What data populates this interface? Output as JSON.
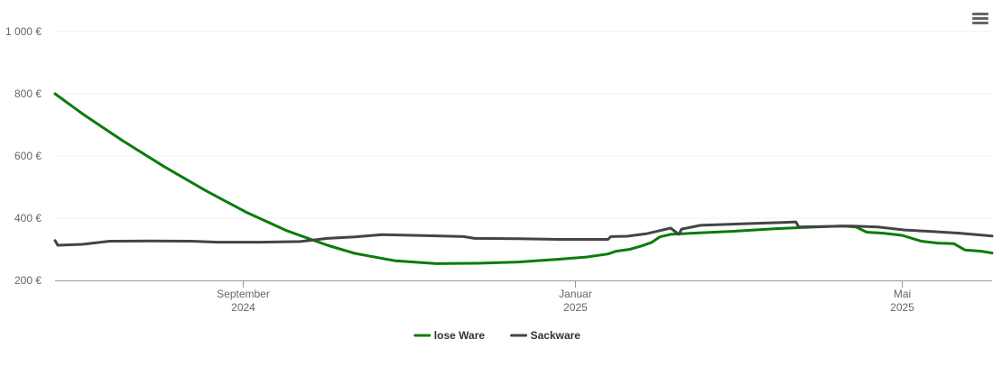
{
  "menu": {
    "icon": "hamburger-menu-icon"
  },
  "chart_data": {
    "type": "line",
    "title": "",
    "xlabel": "",
    "ylabel": "",
    "ylim": [
      200,
      1000
    ],
    "y_ticks": [
      {
        "value": 200,
        "label": "200 €"
      },
      {
        "value": 400,
        "label": "400 €"
      },
      {
        "value": 600,
        "label": "600 €"
      },
      {
        "value": 800,
        "label": "800 €"
      },
      {
        "value": 1000,
        "label": "1 000 €"
      }
    ],
    "x_range": [
      "2024-06-24",
      "2025-06-03"
    ],
    "x_ticks": [
      {
        "date": "2024-09-01",
        "month": "September",
        "year": "2024"
      },
      {
        "date": "2025-01-01",
        "month": "Januar",
        "year": "2025"
      },
      {
        "date": "2025-05-01",
        "month": "Mai",
        "year": "2025"
      }
    ],
    "grid": true,
    "legend_position": "bottom-center",
    "series": [
      {
        "name": "lose Ware",
        "color": "#0a7c0a",
        "points": [
          [
            "2024-06-24",
            800
          ],
          [
            "2024-07-04",
            736
          ],
          [
            "2024-07-19",
            648
          ],
          [
            "2024-08-03",
            566
          ],
          [
            "2024-08-18",
            490
          ],
          [
            "2024-09-02",
            420
          ],
          [
            "2024-09-17",
            360
          ],
          [
            "2024-10-02",
            313
          ],
          [
            "2024-10-12",
            287
          ],
          [
            "2024-10-27",
            263
          ],
          [
            "2024-11-11",
            254
          ],
          [
            "2024-11-26",
            255
          ],
          [
            "2024-12-11",
            259
          ],
          [
            "2024-12-26",
            268
          ],
          [
            "2025-01-05",
            275
          ],
          [
            "2025-01-13",
            285
          ],
          [
            "2025-01-16",
            294
          ],
          [
            "2025-01-21",
            300
          ],
          [
            "2025-01-25",
            310
          ],
          [
            "2025-01-29",
            322
          ],
          [
            "2025-02-01",
            340
          ],
          [
            "2025-02-05",
            348
          ],
          [
            "2025-02-13",
            352
          ],
          [
            "2025-02-28",
            358
          ],
          [
            "2025-03-15",
            366
          ],
          [
            "2025-03-30",
            372
          ],
          [
            "2025-04-09",
            375
          ],
          [
            "2025-04-14",
            372
          ],
          [
            "2025-04-18",
            355
          ],
          [
            "2025-04-24",
            352
          ],
          [
            "2025-05-01",
            345
          ],
          [
            "2025-05-08",
            326
          ],
          [
            "2025-05-14",
            320
          ],
          [
            "2025-05-20",
            318
          ],
          [
            "2025-05-24",
            298
          ],
          [
            "2025-05-30",
            294
          ],
          [
            "2025-06-03",
            288
          ]
        ]
      },
      {
        "name": "Sackware",
        "color": "#444444",
        "points": [
          [
            "2024-06-24",
            328
          ],
          [
            "2024-06-25",
            313
          ],
          [
            "2024-07-04",
            316
          ],
          [
            "2024-07-14",
            326
          ],
          [
            "2024-07-29",
            327
          ],
          [
            "2024-08-13",
            326
          ],
          [
            "2024-08-23",
            323
          ],
          [
            "2024-09-07",
            323
          ],
          [
            "2024-09-22",
            325
          ],
          [
            "2024-10-02",
            335
          ],
          [
            "2024-10-12",
            340
          ],
          [
            "2024-10-22",
            347
          ],
          [
            "2024-11-06",
            344
          ],
          [
            "2024-11-21",
            341
          ],
          [
            "2024-11-25",
            335
          ],
          [
            "2024-12-11",
            334
          ],
          [
            "2024-12-26",
            332
          ],
          [
            "2025-01-13",
            332
          ],
          [
            "2025-01-14",
            341
          ],
          [
            "2025-01-20",
            342
          ],
          [
            "2025-01-27",
            350
          ],
          [
            "2025-02-01",
            360
          ],
          [
            "2025-02-05",
            368
          ],
          [
            "2025-02-08",
            348
          ],
          [
            "2025-02-09",
            365
          ],
          [
            "2025-02-16",
            377
          ],
          [
            "2025-03-03",
            382
          ],
          [
            "2025-03-18",
            386
          ],
          [
            "2025-03-23",
            388
          ],
          [
            "2025-03-24",
            372
          ],
          [
            "2025-04-02",
            373
          ],
          [
            "2025-04-12",
            375
          ],
          [
            "2025-04-22",
            372
          ],
          [
            "2025-05-02",
            362
          ],
          [
            "2025-05-12",
            357
          ],
          [
            "2025-05-22",
            352
          ],
          [
            "2025-06-03",
            343
          ]
        ]
      }
    ]
  }
}
